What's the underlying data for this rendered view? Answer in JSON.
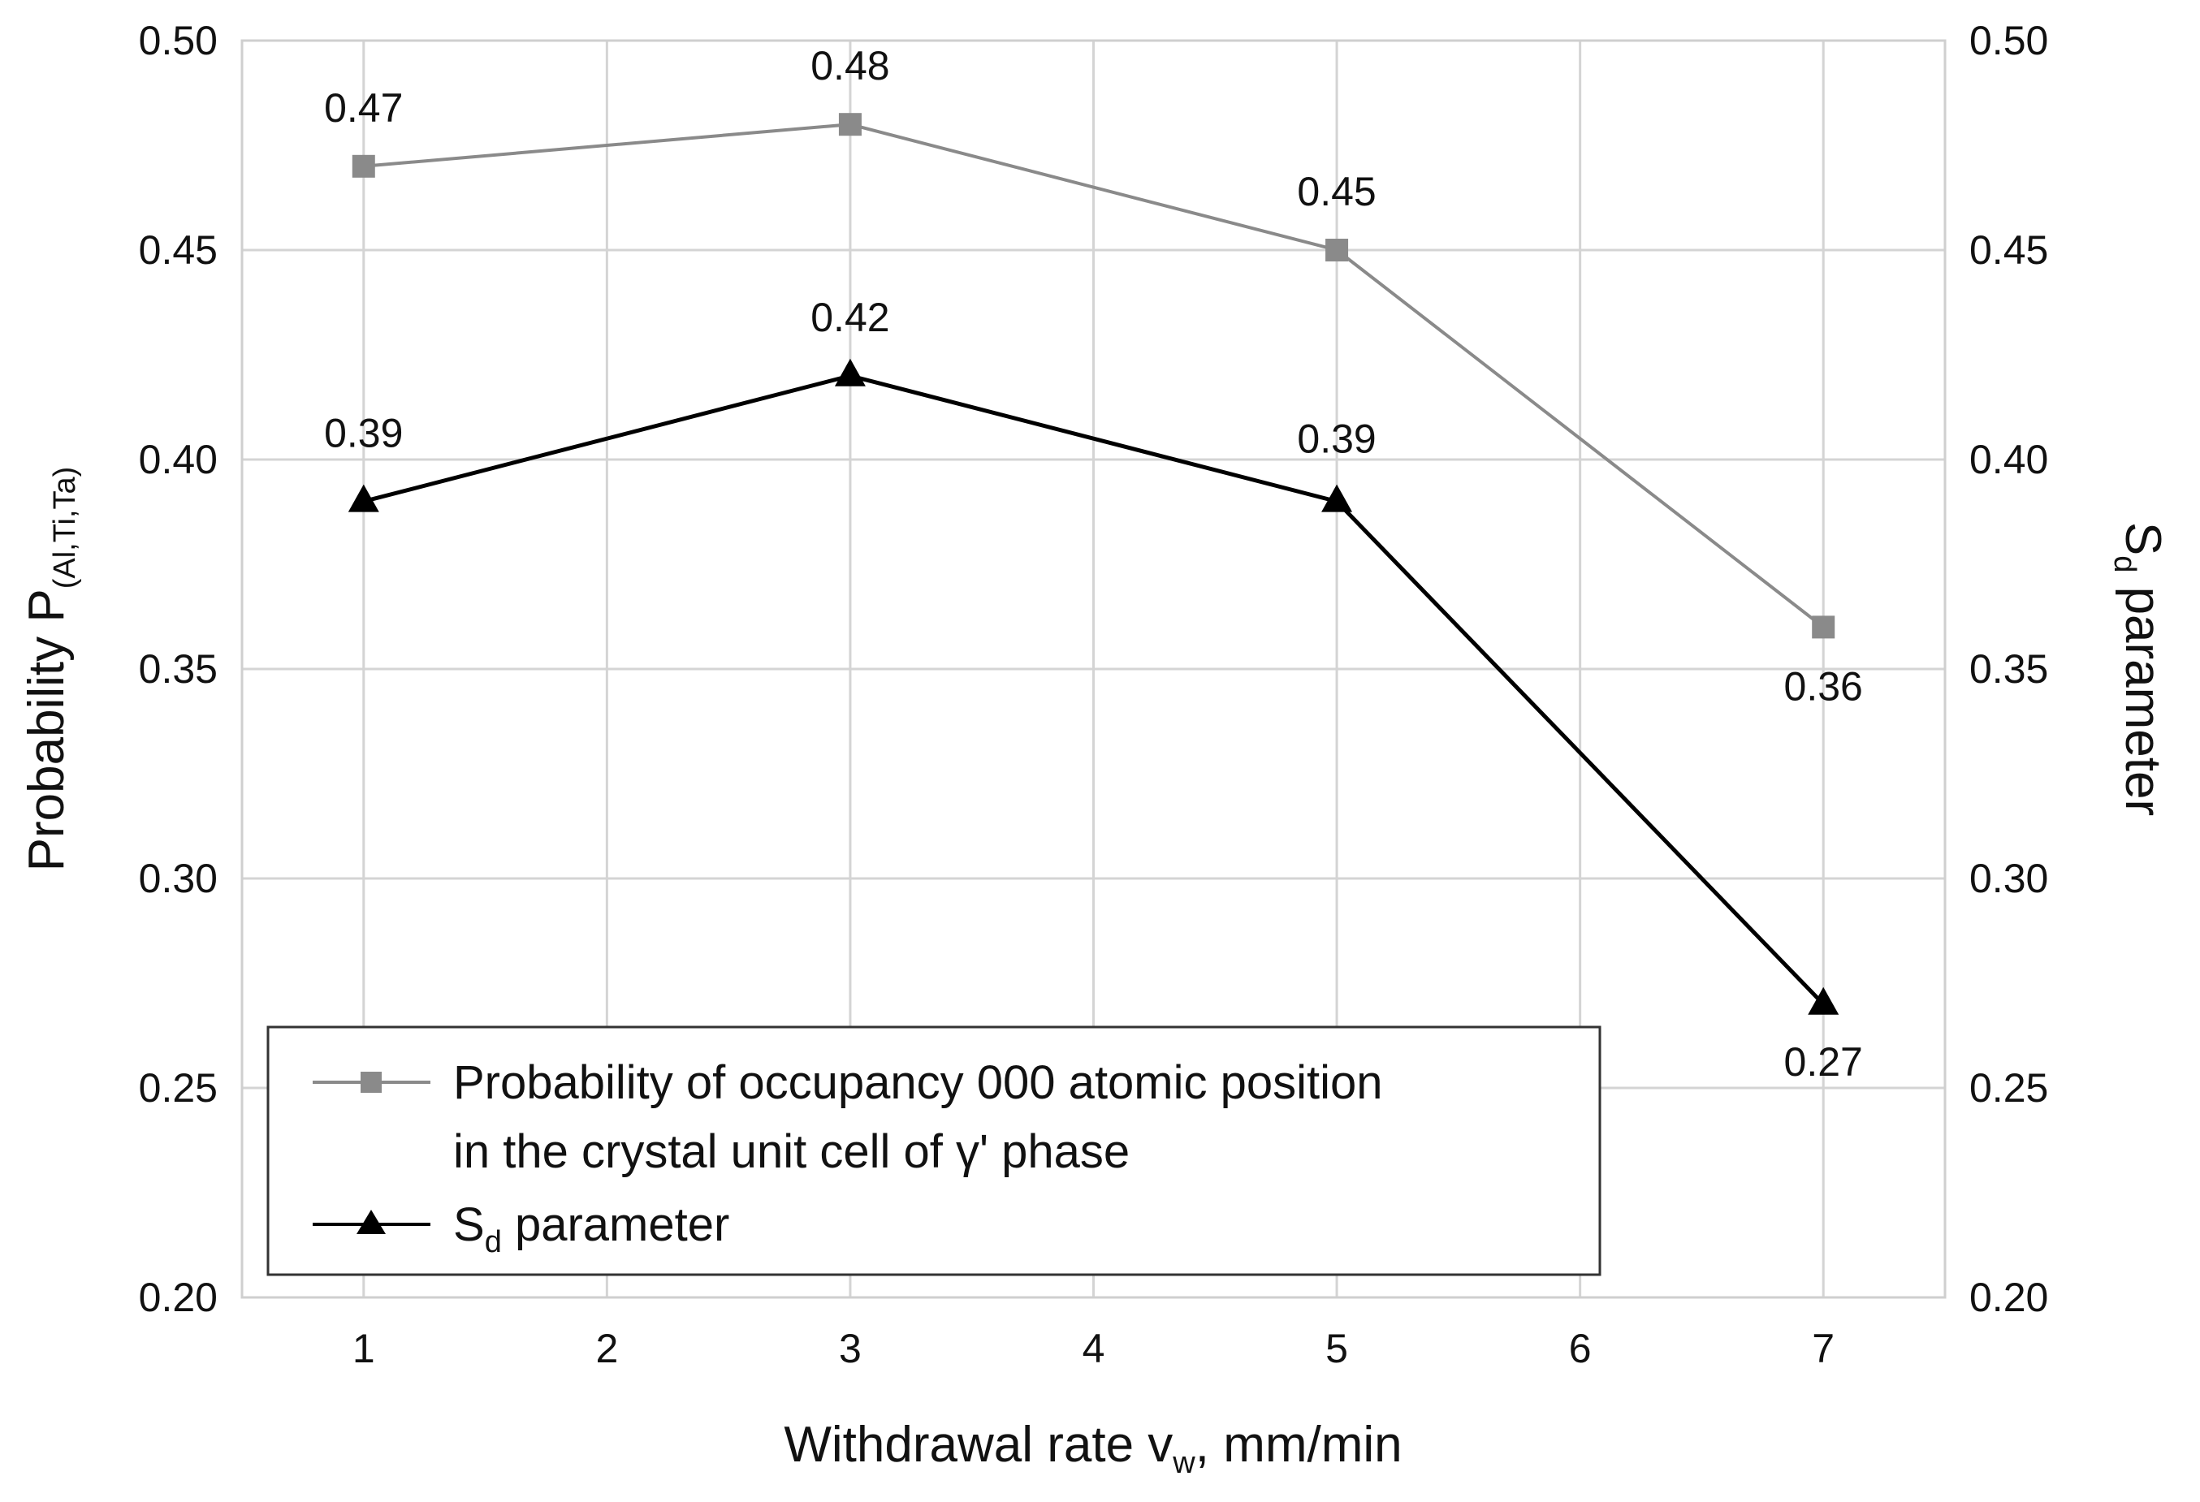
{
  "chart_data": {
    "type": "line",
    "x": [
      1,
      3,
      5,
      7
    ],
    "x_ticks": [
      "1",
      "2",
      "3",
      "4",
      "5",
      "6",
      "7"
    ],
    "xlim": [
      0.5,
      7.5
    ],
    "ylim": [
      0.2,
      0.5
    ],
    "y2lim": [
      0.2,
      0.5
    ],
    "y_ticks": [
      "0.20",
      "0.25",
      "0.30",
      "0.35",
      "0.40",
      "0.45",
      "0.50"
    ],
    "y2_ticks": [
      "0.20",
      "0.25",
      "0.30",
      "0.35",
      "0.40",
      "0.45",
      "0.50"
    ],
    "grid": true,
    "xlabel": {
      "main": "Withdrawal rate v",
      "sub": "w",
      "tail": ", mm/min"
    },
    "ylabel": {
      "main": "Probability P",
      "sub": "(Al,Ti,Ta)"
    },
    "y2label": {
      "main": "S",
      "sub": "d",
      "tail": " parameter"
    },
    "legend_position": "bottom-left",
    "series": [
      {
        "name": "Probability of occupancy 000 atomic position in the crystal unit cell of γ' phase",
        "legend_line1": "Probability of occupancy 000 atomic position",
        "legend_line2": "in the crystal unit cell of γ' phase",
        "marker": "square",
        "color": "#8a8a8a",
        "values": [
          0.47,
          0.48,
          0.45,
          0.36
        ],
        "labels": [
          "0.47",
          "0.48",
          "0.45",
          "0.36"
        ]
      },
      {
        "name": "Sd parameter",
        "legend_main": "S",
        "legend_sub": "d",
        "legend_tail": " parameter",
        "marker": "triangle",
        "color": "#000000",
        "values": [
          0.39,
          0.42,
          0.39,
          0.27
        ],
        "labels": [
          "0.39",
          "0.42",
          "0.39",
          "0.27"
        ]
      }
    ]
  }
}
